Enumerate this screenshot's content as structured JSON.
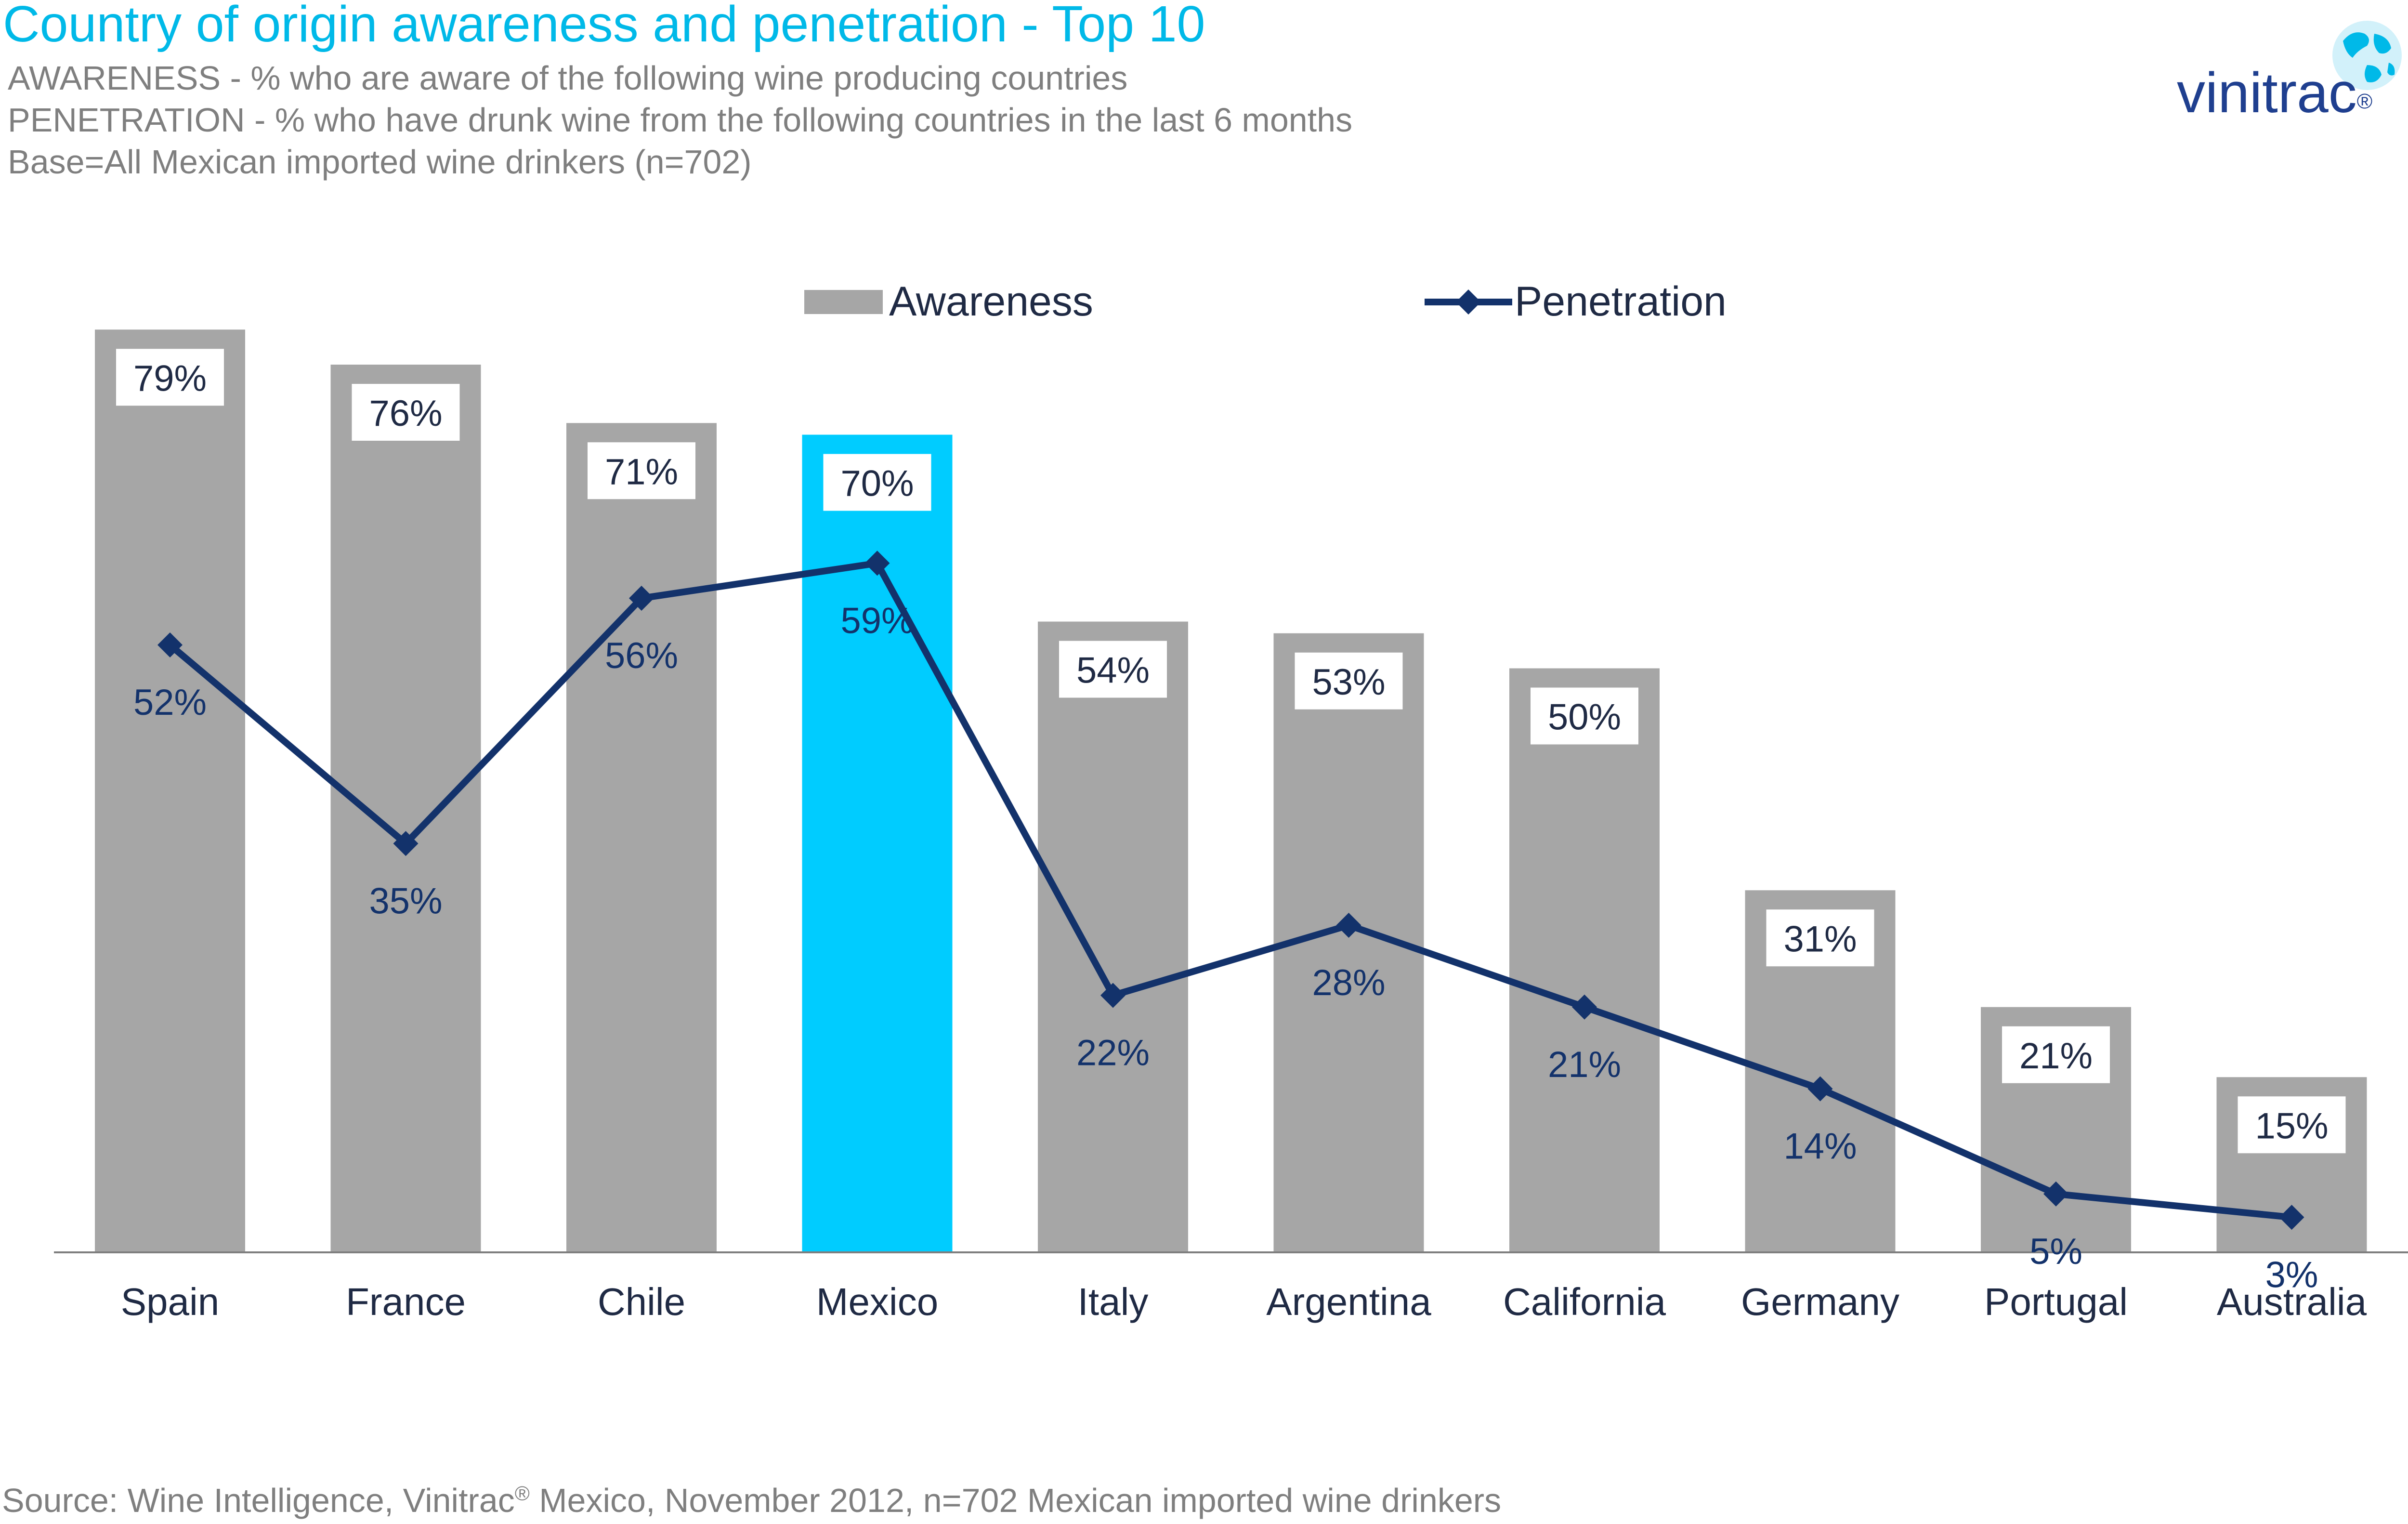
{
  "header": {
    "title": "Country of origin awareness and penetration - Top 10",
    "subtitle_1": "AWARENESS - % who are aware of the following wine producing countries",
    "subtitle_2": "PENETRATION - % who have drunk wine from the following countries in the last 6 months",
    "subtitle_3": "Base=All Mexican imported wine drinkers (n=702)"
  },
  "logo": {
    "text": "vinitrac",
    "registered": "®"
  },
  "footer": {
    "source_prefix": "Source: Wine Intelligence, Vinitrac",
    "source_reg": "®",
    "source_suffix": " Mexico,  November  2012, n=702 Mexican imported wine drinkers"
  },
  "colors": {
    "bar": "#a6a6a6",
    "bar_highlight": "#00ccff",
    "line": "#13326b",
    "title": "#00b9e8",
    "text": "#13326b",
    "label": "#1f2a44"
  },
  "chart_data": {
    "type": "bar",
    "categories": [
      "Spain",
      "France",
      "Chile",
      "Mexico",
      "Italy",
      "Argentina",
      "California",
      "Germany",
      "Portugal",
      "Australia"
    ],
    "highlight_category": "Mexico",
    "ylim": [
      0,
      100
    ],
    "grid": false,
    "legend_position": "top",
    "series": [
      {
        "name": "Awareness",
        "type": "bar",
        "values": [
          79,
          76,
          71,
          70,
          54,
          53,
          50,
          31,
          21,
          15
        ],
        "labels": [
          "79%",
          "76%",
          "71%",
          "70%",
          "54%",
          "53%",
          "50%",
          "31%",
          "21%",
          "15%"
        ]
      },
      {
        "name": "Penetration",
        "type": "line",
        "values": [
          52,
          35,
          56,
          59,
          22,
          28,
          21,
          14,
          5,
          3
        ],
        "labels": [
          "52%",
          "35%",
          "56%",
          "59%",
          "22%",
          "28%",
          "21%",
          "14%",
          "5%",
          "3%"
        ]
      }
    ]
  }
}
